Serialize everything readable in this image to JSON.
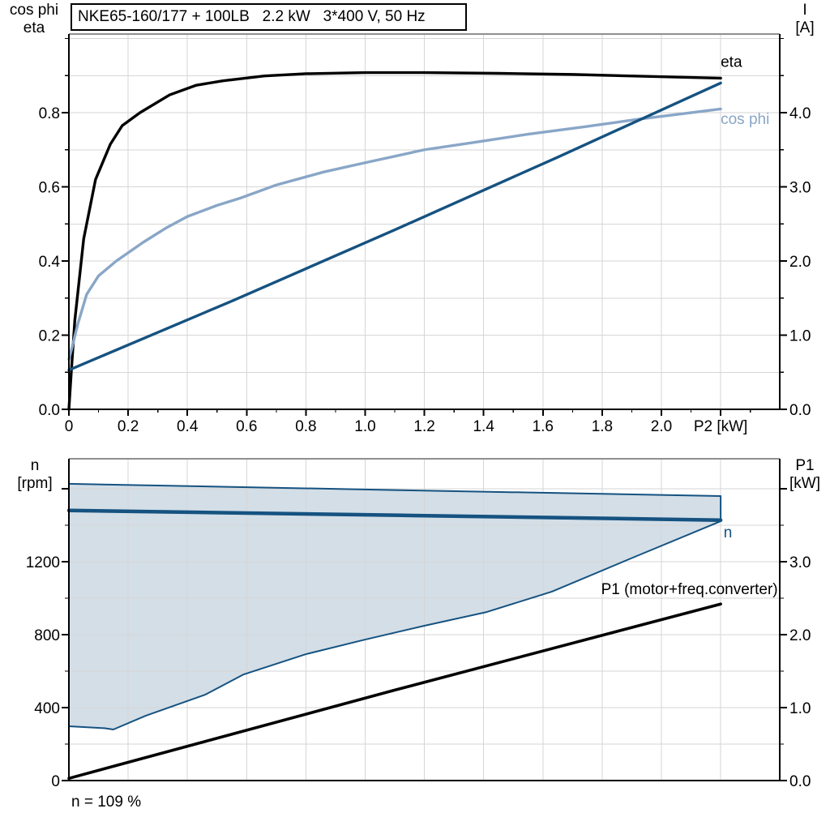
{
  "title": "NKE65-160/177 + 100LB   2.2 kW   3*400 V, 50 Hz",
  "note": "n = 109 %",
  "colors": {
    "black": "#000000",
    "dark_blue": "#155280",
    "light_blue": "#89a6c7",
    "area_fill": "rgba(21,82,128,0.19)",
    "grid": "#d6d6d6",
    "border": "#8f8f8f"
  },
  "chart_data": [
    {
      "type": "line",
      "name": "motor-efficiency-current",
      "x_axis": {
        "tick_values": [
          0,
          0.2,
          0.4,
          0.6,
          0.8,
          1.0,
          1.2,
          1.4,
          1.6,
          1.8,
          2.0
        ],
        "tick_labels": [
          "0",
          "0.2",
          "0.4",
          "0.6",
          "0.8",
          "1.0",
          "1.2",
          "1.4",
          "1.6",
          "1.8",
          "2.0"
        ],
        "end_tick_value": 2.2,
        "label_end": "P2 [kW]",
        "minor_step": 0.1,
        "range": [
          0,
          2.4
        ]
      },
      "left_axis": {
        "title_lines": [
          "cos phi",
          "eta"
        ],
        "tick_values": [
          0,
          0.2,
          0.4,
          0.6,
          0.8
        ],
        "tick_labels": [
          "0.0",
          "0.2",
          "0.4",
          "0.6",
          "0.8"
        ],
        "minor_step": 0.1,
        "range": [
          0,
          1.01
        ]
      },
      "right_axis": {
        "title_lines": [
          "I",
          "[A]"
        ],
        "tick_values": [
          0,
          1,
          2,
          3,
          4
        ],
        "tick_labels": [
          "0.0",
          "1.0",
          "2.0",
          "3.0",
          "4.0"
        ],
        "minor_step": 0.5,
        "range": [
          0,
          5.06
        ]
      },
      "series": [
        {
          "name": "eta",
          "axis": "left",
          "color": "black",
          "width": 3.4,
          "points": [
            [
              0,
              0
            ],
            [
              0.008,
              0.1
            ],
            [
              0.02,
              0.24
            ],
            [
              0.05,
              0.46
            ],
            [
              0.09,
              0.62
            ],
            [
              0.14,
              0.715
            ],
            [
              0.18,
              0.765
            ],
            [
              0.24,
              0.8
            ],
            [
              0.34,
              0.848
            ],
            [
              0.43,
              0.874
            ],
            [
              0.52,
              0.886
            ],
            [
              0.66,
              0.899
            ],
            [
              0.8,
              0.905
            ],
            [
              1.0,
              0.908
            ],
            [
              1.2,
              0.908
            ],
            [
              1.45,
              0.906
            ],
            [
              1.7,
              0.903
            ],
            [
              1.95,
              0.898
            ],
            [
              2.2,
              0.893
            ]
          ]
        },
        {
          "name": "cos phi",
          "axis": "left",
          "color": "light_blue",
          "width": 3.4,
          "points": [
            [
              0,
              0.135
            ],
            [
              0.01,
              0.165
            ],
            [
              0.03,
              0.23
            ],
            [
              0.06,
              0.31
            ],
            [
              0.1,
              0.36
            ],
            [
              0.16,
              0.4
            ],
            [
              0.25,
              0.45
            ],
            [
              0.33,
              0.49
            ],
            [
              0.4,
              0.52
            ],
            [
              0.5,
              0.55
            ],
            [
              0.58,
              0.57
            ],
            [
              0.7,
              0.605
            ],
            [
              0.86,
              0.64
            ],
            [
              1.0,
              0.665
            ],
            [
              1.2,
              0.7
            ],
            [
              1.37,
              0.72
            ],
            [
              1.55,
              0.742
            ],
            [
              1.74,
              0.762
            ],
            [
              1.92,
              0.782
            ],
            [
              2.05,
              0.795
            ],
            [
              2.2,
              0.81
            ]
          ]
        },
        {
          "name": "I",
          "axis": "right",
          "color": "dark_blue",
          "width": 3.4,
          "points": [
            [
              0,
              0.53
            ],
            [
              0.55,
              1.46
            ],
            [
              1.1,
              2.42
            ],
            [
              1.65,
              3.4
            ],
            [
              2.2,
              4.4
            ]
          ]
        }
      ],
      "annotations": [
        {
          "text": "eta",
          "x": 2.2,
          "y": 0.923,
          "axis": "left",
          "anchor": "start",
          "color": "black"
        },
        {
          "text": "cos phi",
          "x": 2.2,
          "y": 0.769,
          "axis": "left",
          "anchor": "start",
          "color": "light_blue"
        }
      ]
    },
    {
      "type": "line-area",
      "name": "speed-and-input-power",
      "x_axis": {
        "tick_values": [],
        "tick_labels": [],
        "end_tick_value": null,
        "label_end": "",
        "minor_step": null,
        "range": [
          0,
          2.4
        ]
      },
      "left_axis": {
        "title_lines": [
          "n",
          "[rpm]"
        ],
        "tick_values": [
          0,
          400,
          800,
          1200,
          1600
        ],
        "tick_labels": [
          "0",
          "400",
          "800",
          "1200",
          ""
        ],
        "minor_step": 200,
        "range": [
          0,
          1764
        ]
      },
      "right_axis": {
        "title_lines": [
          "P1",
          "[kW]"
        ],
        "tick_values": [
          0,
          1,
          2,
          3,
          4
        ],
        "tick_labels": [
          "0.0",
          "1.0",
          "2.0",
          "3.0",
          ""
        ],
        "minor_step": 0.5,
        "range": [
          0,
          4.41
        ]
      },
      "area": {
        "name": "speed-control-range",
        "upper": [
          [
            0,
            1627
          ],
          [
            1.1,
            1593
          ],
          [
            2.2,
            1560
          ]
        ],
        "lower": [
          [
            0,
            298
          ],
          [
            0.12,
            287
          ],
          [
            0.15,
            280
          ],
          [
            0.26,
            356
          ],
          [
            0.46,
            471
          ],
          [
            0.59,
            582
          ],
          [
            0.8,
            693
          ],
          [
            1.0,
            773
          ],
          [
            1.2,
            849
          ],
          [
            1.41,
            924
          ],
          [
            1.63,
            1036
          ],
          [
            1.9,
            1220
          ],
          [
            2.2,
            1422
          ]
        ]
      },
      "series": [
        {
          "name": "n",
          "axis": "left",
          "color": "dark_blue",
          "width": 4.5,
          "points": [
            [
              0,
              1481
            ],
            [
              1.1,
              1455
            ],
            [
              2.2,
              1428
            ]
          ]
        },
        {
          "name": "P1 (motor+freq.converter)",
          "axis": "right",
          "color": "black",
          "width": 3.6,
          "points": [
            [
              0,
              0.03
            ],
            [
              1.1,
              1.24
            ],
            [
              2.2,
              2.42
            ]
          ]
        }
      ],
      "annotations": [
        {
          "text": "n",
          "x": 2.21,
          "y": 1333,
          "axis": "left",
          "anchor": "start",
          "color": "dark_blue"
        },
        {
          "text": "P1 (motor+freq.converter)",
          "x": 2.393,
          "y": 1022,
          "axis": "left",
          "anchor": "end",
          "color": "black"
        }
      ]
    }
  ]
}
